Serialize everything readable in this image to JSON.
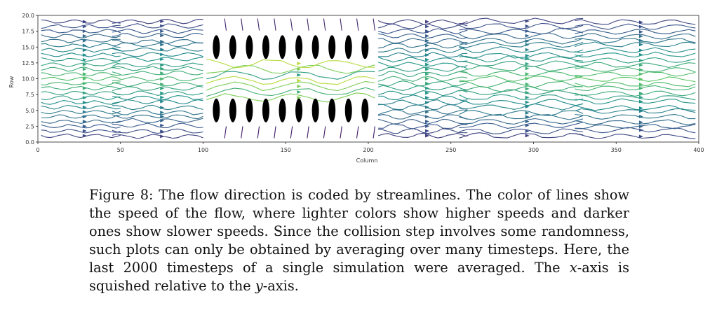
{
  "chart_data": {
    "type": "streamplot",
    "title": "",
    "xlabel": "Column",
    "ylabel": "Row",
    "xlim": [
      0,
      400
    ],
    "ylim": [
      0,
      20
    ],
    "x_ticks": [
      0,
      50,
      100,
      150,
      200,
      250,
      300,
      350,
      400
    ],
    "y_ticks": [
      "0.0",
      "2.5",
      "5.0",
      "7.5",
      "10.0",
      "12.5",
      "15.0",
      "17.5",
      "20.0"
    ],
    "colormap": "viridis",
    "obstacle_color": "#000000",
    "obstacles": [
      {
        "x": 108,
        "y": 15.0
      },
      {
        "x": 118,
        "y": 15.0
      },
      {
        "x": 128,
        "y": 15.0
      },
      {
        "x": 138,
        "y": 15.0
      },
      {
        "x": 148,
        "y": 15.0
      },
      {
        "x": 158,
        "y": 15.0
      },
      {
        "x": 168,
        "y": 15.0
      },
      {
        "x": 178,
        "y": 15.0
      },
      {
        "x": 188,
        "y": 15.0
      },
      {
        "x": 198,
        "y": 15.0
      },
      {
        "x": 108,
        "y": 5.0
      },
      {
        "x": 118,
        "y": 5.0
      },
      {
        "x": 128,
        "y": 5.0
      },
      {
        "x": 138,
        "y": 5.0
      },
      {
        "x": 148,
        "y": 5.0
      },
      {
        "x": 158,
        "y": 5.0
      },
      {
        "x": 168,
        "y": 5.0
      },
      {
        "x": 178,
        "y": 5.0
      },
      {
        "x": 188,
        "y": 5.0
      },
      {
        "x": 198,
        "y": 5.0
      }
    ]
  },
  "caption": {
    "label": "Figure 8:",
    "part1": " The flow direction is coded by streamlines. The color of lines show the speed of the flow, where lighter colors show higher speeds and darker ones show slower speeds. Since the collision step involves some randomness, such plots can only be obtained by averaging over many timesteps. Here, the last 2000 timesteps of a single simulation were averaged. The ",
    "x_var": "x",
    "part2": "-axis is squished relative to the ",
    "y_var": "y",
    "part3": "-axis."
  }
}
